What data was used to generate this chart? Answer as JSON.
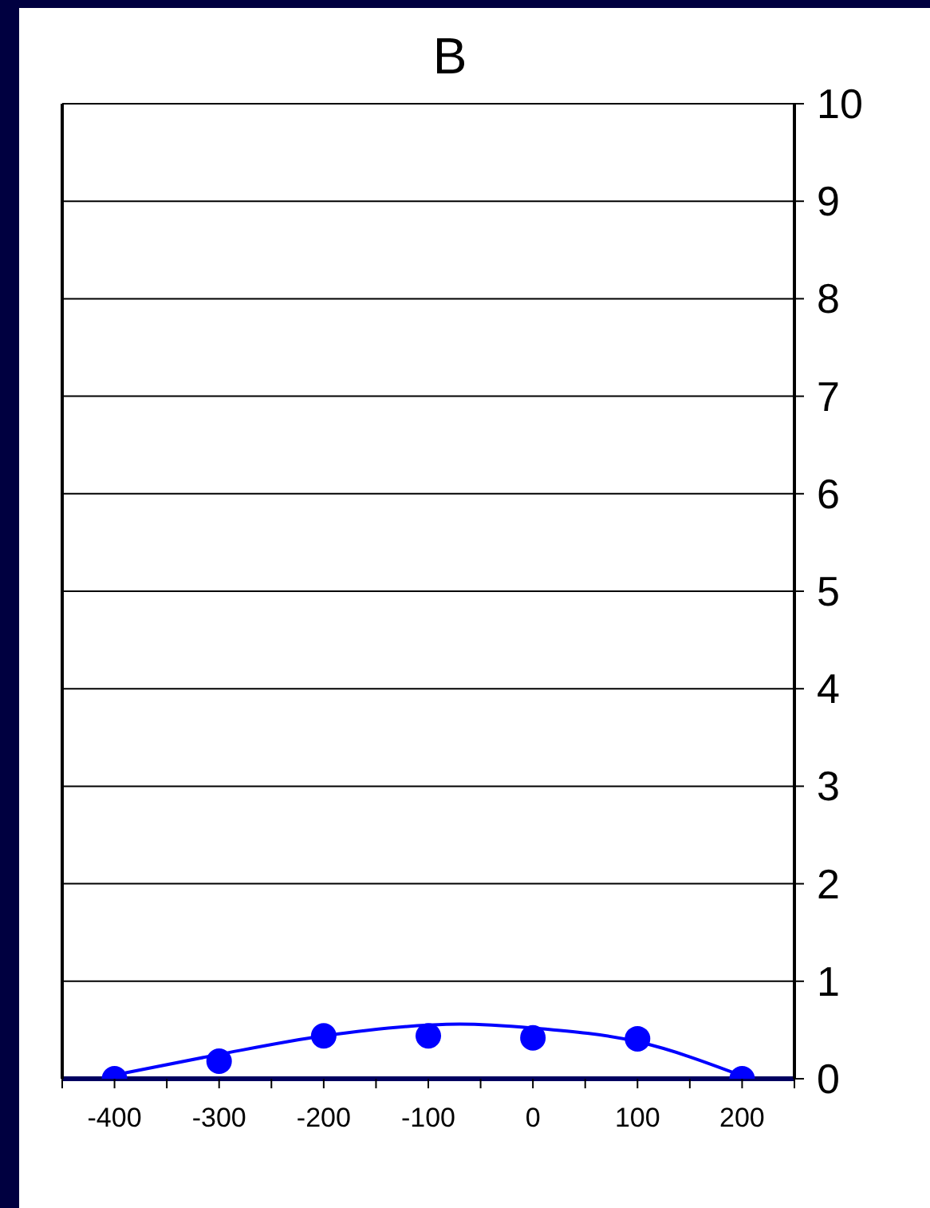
{
  "chart_data": {
    "type": "scatter",
    "title": "B",
    "xlim": [
      -450,
      250
    ],
    "xticks": [
      {
        "value": -450,
        "label": null
      },
      -400,
      {
        "value": -350,
        "label": null
      },
      -300,
      {
        "value": -250,
        "label": null
      },
      -200,
      {
        "value": -150,
        "label": null
      },
      -100,
      {
        "value": -50,
        "label": null
      },
      0,
      {
        "value": 50,
        "label": null
      },
      100,
      {
        "value": 150,
        "label": null
      },
      200,
      {
        "value": 250,
        "label": null
      }
    ],
    "ylim": [
      0,
      10
    ],
    "yticks": [
      0,
      1,
      2,
      3,
      4,
      5,
      6,
      7,
      8,
      9,
      10
    ],
    "grid": "y",
    "marker": "circle",
    "series": [
      {
        "type": "scatter",
        "color": "#0000ff",
        "x": [
          -400,
          -300,
          -200,
          -100,
          0,
          100,
          200
        ],
        "values": [
          0,
          0.18,
          0.44,
          0.44,
          0.42,
          0.41,
          0
        ]
      },
      {
        "type": "line",
        "color": "#0000ff",
        "marker": "none",
        "x": [
          -390,
          -300,
          -200,
          -100,
          -70,
          0,
          100,
          200
        ],
        "values": [
          0.06,
          0.25,
          0.44,
          0.55,
          0.56,
          0.52,
          0.38,
          0.03
        ]
      }
    ]
  }
}
